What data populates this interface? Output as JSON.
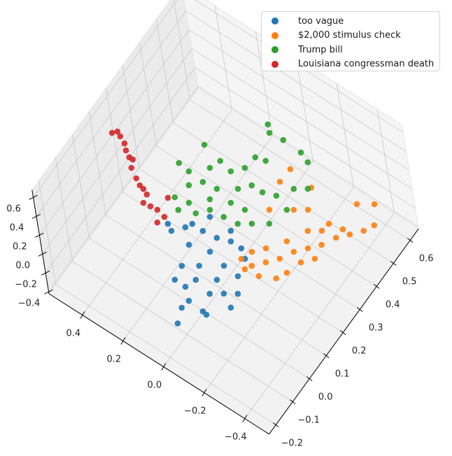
{
  "chart_data": {
    "type": "scatter3d",
    "title": "",
    "xlabel": "",
    "ylabel": "",
    "zlabel": "",
    "xlim": [
      -0.52,
      0.565
    ],
    "ylim": [
      -0.24,
      0.65
    ],
    "zlim": [
      -0.42,
      0.68
    ],
    "grid": true,
    "legend_position": "top-right",
    "x_ticks": [
      "0.4",
      "0.2",
      "0.0",
      "−0.2",
      "−0.4"
    ],
    "x_tick_values": [
      0.4,
      0.2,
      0.0,
      -0.2,
      -0.4
    ],
    "y_ticks": [
      "−0.2",
      "−0.1",
      "0.0",
      "0.1",
      "0.2",
      "0.3",
      "0.4",
      "0.5",
      "0.6"
    ],
    "y_tick_values": [
      -0.2,
      -0.1,
      0.0,
      0.1,
      0.2,
      0.3,
      0.4,
      0.5,
      0.6
    ],
    "z_ticks": [
      "−0.4",
      "−0.2",
      "0.0",
      "0.2",
      "0.4",
      "0.6"
    ],
    "z_tick_values": [
      -0.4,
      -0.2,
      0.0,
      0.2,
      0.4,
      0.6
    ],
    "series": [
      {
        "name": "too vague",
        "color": "#1f77b4",
        "points": [
          [
            -0.06,
            -0.19,
            0
          ],
          [
            0.188,
            0.072,
            0
          ],
          [
            0.217,
            0.086,
            0
          ],
          [
            0.15,
            0.109,
            0
          ],
          [
            0.082,
            0.131,
            0
          ],
          [
            0.018,
            0.137,
            0
          ],
          [
            -0.038,
            0.153,
            0
          ],
          [
            -0.09,
            0.152,
            0
          ],
          [
            0.095,
            0.064,
            0
          ],
          [
            0.007,
            0.083,
            0
          ],
          [
            -0.074,
            0.068,
            0
          ],
          [
            -0.147,
            0.063,
            0
          ],
          [
            0.067,
            -0.012,
            0
          ],
          [
            -0.014,
            -0.027,
            0
          ],
          [
            -0.095,
            -0.042,
            0
          ],
          [
            -0.142,
            -0.015,
            0
          ],
          [
            -0.042,
            -0.102,
            0
          ],
          [
            -0.115,
            -0.107,
            0
          ],
          [
            -0.035,
            -0.136,
            0
          ],
          [
            -0.135,
            -0.11,
            0
          ],
          [
            -0.19,
            0.011,
            0
          ],
          [
            -0.128,
            0.128,
            0
          ],
          [
            0.009,
            0.021,
            0
          ],
          [
            -0.085,
            0.013,
            0
          ],
          [
            0.057,
            -0.066,
            0
          ],
          [
            0.135,
            0.132,
            0
          ],
          [
            -0.012,
            0.184,
            0
          ],
          [
            0.093,
            0.186,
            0
          ],
          [
            0.004,
            -0.067,
            0
          ],
          [
            -0.2,
            -0.043,
            0
          ]
        ]
      },
      {
        "name": "$2,000 stimulus check",
        "color": "#ff7f0e",
        "points": [
          [
            -0.116,
            0.121,
            0
          ],
          [
            -0.168,
            0.12,
            0
          ],
          [
            -0.207,
            0.157,
            0
          ],
          [
            -0.245,
            0.194,
            0
          ],
          [
            -0.275,
            0.241,
            0
          ],
          [
            -0.314,
            0.278,
            0
          ],
          [
            -0.352,
            0.314,
            0
          ],
          [
            -0.383,
            0.362,
            0
          ],
          [
            -0.421,
            0.398,
            0
          ],
          [
            -0.459,
            0.435,
            0
          ],
          [
            -0.481,
            0.471,
            0
          ],
          [
            -0.371,
            0.501,
            0
          ],
          [
            -0.43,
            0.534,
            0
          ],
          [
            -0.325,
            0.39,
            0
          ],
          [
            -0.271,
            0.329,
            0
          ],
          [
            -0.226,
            0.259,
            0
          ],
          [
            -0.173,
            0.199,
            0
          ],
          [
            -0.134,
            0.162,
            0
          ],
          [
            -0.153,
            0.097,
            0
          ],
          [
            -0.217,
            0.103,
            0
          ],
          [
            -0.281,
            0.129,
            0
          ],
          [
            -0.303,
            0.166,
            0
          ],
          [
            -0.325,
            0.223,
            0
          ],
          [
            -0.363,
            0.26,
            0
          ],
          [
            -0.061,
            0.479,
            0
          ],
          [
            -0.057,
            0.422,
            0
          ],
          [
            -0.177,
            0.464,
            0
          ],
          [
            -0.22,
            0.392,
            0
          ],
          [
            -0.172,
            0.365,
            0
          ],
          [
            -0.09,
            0.319,
            0
          ],
          [
            -0.318,
            0.356,
            0
          ],
          [
            -0.385,
            0.4,
            0
          ]
        ]
      },
      {
        "name": "Trump bill",
        "color": "#2ca02c",
        "points": [
          [
            0.124,
            0.569,
            0
          ],
          [
            0.098,
            0.547,
            0
          ],
          [
            0.034,
            0.552,
            0
          ],
          [
            0.288,
            0.389,
            0
          ],
          [
            -0.056,
            0.548,
            0
          ],
          [
            -0.103,
            0.532,
            0
          ],
          [
            0.086,
            0.448,
            0
          ],
          [
            0.042,
            0.457,
            0
          ],
          [
            0.329,
            0.287,
            0
          ],
          [
            0.275,
            0.281,
            0
          ],
          [
            0.213,
            0.331,
            0
          ],
          [
            0.195,
            0.371,
            0
          ],
          [
            0.134,
            0.36,
            0
          ],
          [
            0.095,
            0.397,
            0
          ],
          [
            0.241,
            0.24,
            0
          ],
          [
            0.202,
            0.276,
            0
          ],
          [
            0.138,
            0.282,
            0
          ],
          [
            0.067,
            0.322,
            0
          ],
          [
            0.029,
            0.358,
            0
          ],
          [
            0.259,
            0.178,
            0
          ],
          [
            0.198,
            0.188,
            0
          ],
          [
            0.136,
            0.238,
            0
          ],
          [
            0.057,
            0.267,
            0
          ],
          [
            -0.008,
            0.273,
            0
          ],
          [
            -0.024,
            0.358,
            0
          ],
          [
            -0.079,
            0.374,
            0
          ],
          [
            -0.149,
            0.352,
            0
          ],
          [
            0.216,
            0.147,
            0
          ],
          [
            0.149,
            0.17,
            0
          ],
          [
            0.046,
            0.212,
            0
          ],
          [
            -0.018,
            0.218,
            0
          ],
          [
            -0.065,
            0.245,
            0
          ],
          [
            -0.124,
            0.278,
            0
          ],
          [
            -0.121,
            0.427,
            0
          ],
          [
            -0.168,
            0.454,
            0
          ],
          [
            0.11,
            0.207,
            0
          ]
        ]
      },
      {
        "name": "Louisiana congressman death",
        "color": "#d62728",
        "points": [
          [
            0.543,
            0.175,
            0.3
          ],
          [
            0.528,
            0.189,
            0.3
          ],
          [
            0.507,
            0.18,
            0.3
          ],
          [
            0.475,
            0.167,
            0.3
          ],
          [
            0.453,
            0.149,
            0.3
          ],
          [
            0.425,
            0.135,
            0.3
          ],
          [
            0.392,
            0.108,
            0.3
          ],
          [
            0.35,
            0.086,
            0.3
          ],
          [
            0.321,
            0.072,
            0.3
          ],
          [
            0.275,
            0.058,
            0.3
          ],
          [
            0.266,
            0.027,
            0.3
          ],
          [
            0.234,
            0.03,
            0.3
          ],
          [
            0.196,
            0.088,
            0.3
          ],
          [
            0.171,
            -0.005,
            0.3
          ],
          [
            0.161,
            0.025,
            0.3
          ],
          [
            0.408,
            0.135,
            0.3
          ],
          [
            0.3,
            0.068,
            0.3
          ],
          [
            0.202,
            0.033,
            0.3
          ]
        ]
      }
    ]
  }
}
